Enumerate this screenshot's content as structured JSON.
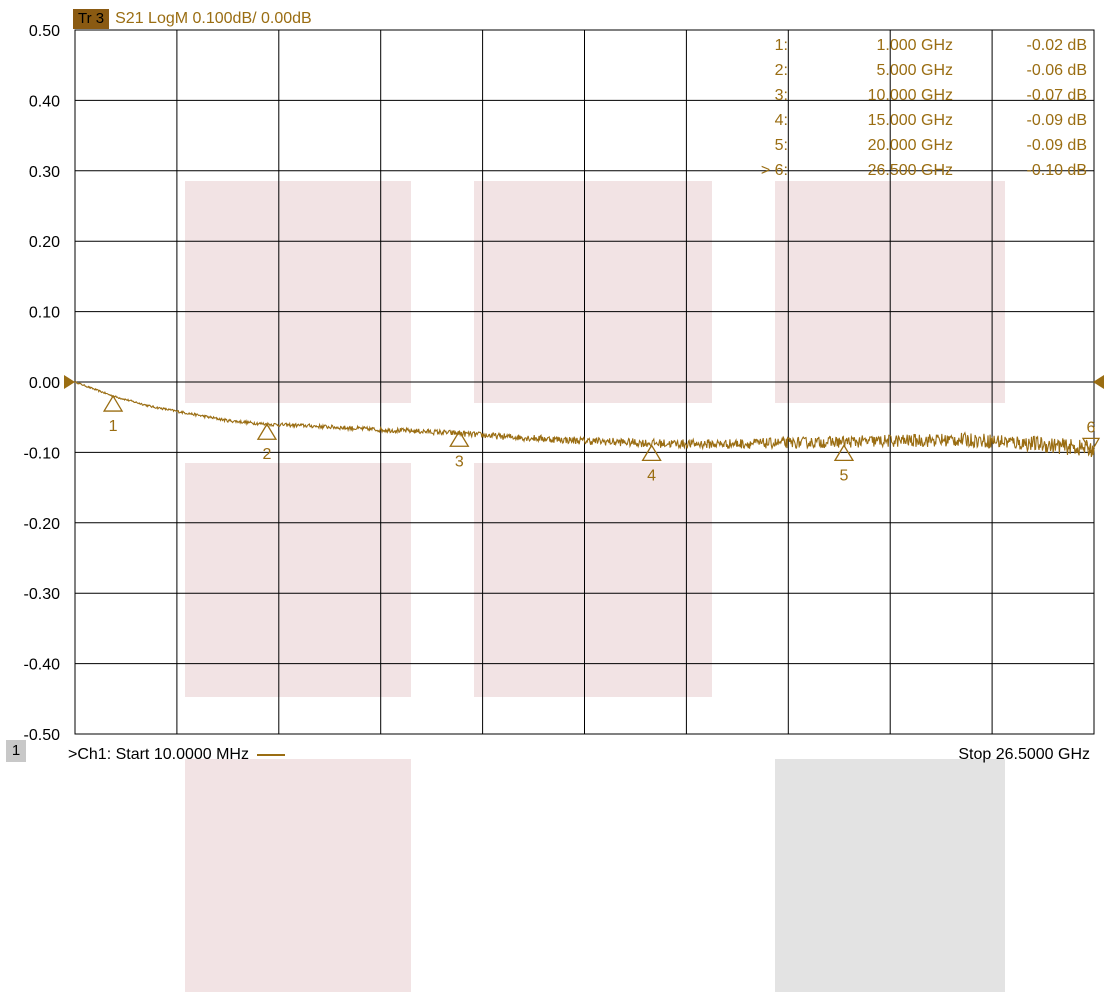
{
  "header": {
    "trace_badge": "Tr 3",
    "trace_info": "S21 LogM 0.100dB/  0.00dB"
  },
  "footer": {
    "channel_number": "1",
    "start_label": ">Ch1: Start  10.0000 MHz",
    "stop_label": "Stop  26.5000 GHz"
  },
  "colors": {
    "trace": "#9a6d12",
    "badge": "#8a5a12",
    "grid": "#000000",
    "pink_box": "#f2e3e4",
    "gray_box": "#e3e3e3"
  },
  "chart_data": {
    "type": "line",
    "title": "S21 LogM 0.100dB/  0.00dB",
    "xlabel": "",
    "ylabel": "",
    "x_range_ghz": [
      0.01,
      26.5
    ],
    "ylim": [
      -0.5,
      0.5
    ],
    "y_ticks": [
      "0.50",
      "0.40",
      "0.30",
      "0.20",
      "0.10",
      "0.00",
      "-0.10",
      "-0.20",
      "-0.30",
      "-0.40",
      "-0.50"
    ],
    "x_divisions": 10,
    "grid": true,
    "reference_level_db": 0.0,
    "series": [
      {
        "x_ghz": [
          0.01,
          0.5,
          1.0,
          2.0,
          3.0,
          4.0,
          5.0,
          6.0,
          7.0,
          8.0,
          9.0,
          10.0,
          11.0,
          12.0,
          13.0,
          14.0,
          15.0,
          16.0,
          17.0,
          18.0,
          19.0,
          20.0,
          21.0,
          22.0,
          23.0,
          24.0,
          25.0,
          26.0,
          26.5
        ],
        "y_db": [
          0.0,
          -0.01,
          -0.02,
          -0.035,
          -0.045,
          -0.055,
          -0.06,
          -0.062,
          -0.065,
          -0.068,
          -0.07,
          -0.073,
          -0.077,
          -0.08,
          -0.083,
          -0.085,
          -0.087,
          -0.088,
          -0.088,
          -0.087,
          -0.086,
          -0.085,
          -0.084,
          -0.083,
          -0.082,
          -0.084,
          -0.088,
          -0.093,
          -0.095
        ]
      }
    ],
    "markers": [
      {
        "num": "1",
        "prefix": "",
        "freq": "1.000 GHz",
        "val": "-0.02 dB",
        "x_ghz": 1.0,
        "y_db": -0.02,
        "active": false
      },
      {
        "num": "2",
        "prefix": "",
        "freq": "5.000 GHz",
        "val": "-0.06 dB",
        "x_ghz": 5.0,
        "y_db": -0.06,
        "active": false
      },
      {
        "num": "3",
        "prefix": "",
        "freq": "10.000 GHz",
        "val": "-0.07 dB",
        "x_ghz": 10.0,
        "y_db": -0.07,
        "active": false
      },
      {
        "num": "4",
        "prefix": "",
        "freq": "15.000 GHz",
        "val": "-0.09 dB",
        "x_ghz": 15.0,
        "y_db": -0.09,
        "active": false
      },
      {
        "num": "5",
        "prefix": "",
        "freq": "20.000 GHz",
        "val": "-0.09 dB",
        "x_ghz": 20.0,
        "y_db": -0.09,
        "active": false
      },
      {
        "num": "6",
        "prefix": ">",
        "freq": "26.500 GHz",
        "val": "-0.10 dB",
        "x_ghz": 26.5,
        "y_db": -0.1,
        "active": true
      }
    ]
  }
}
